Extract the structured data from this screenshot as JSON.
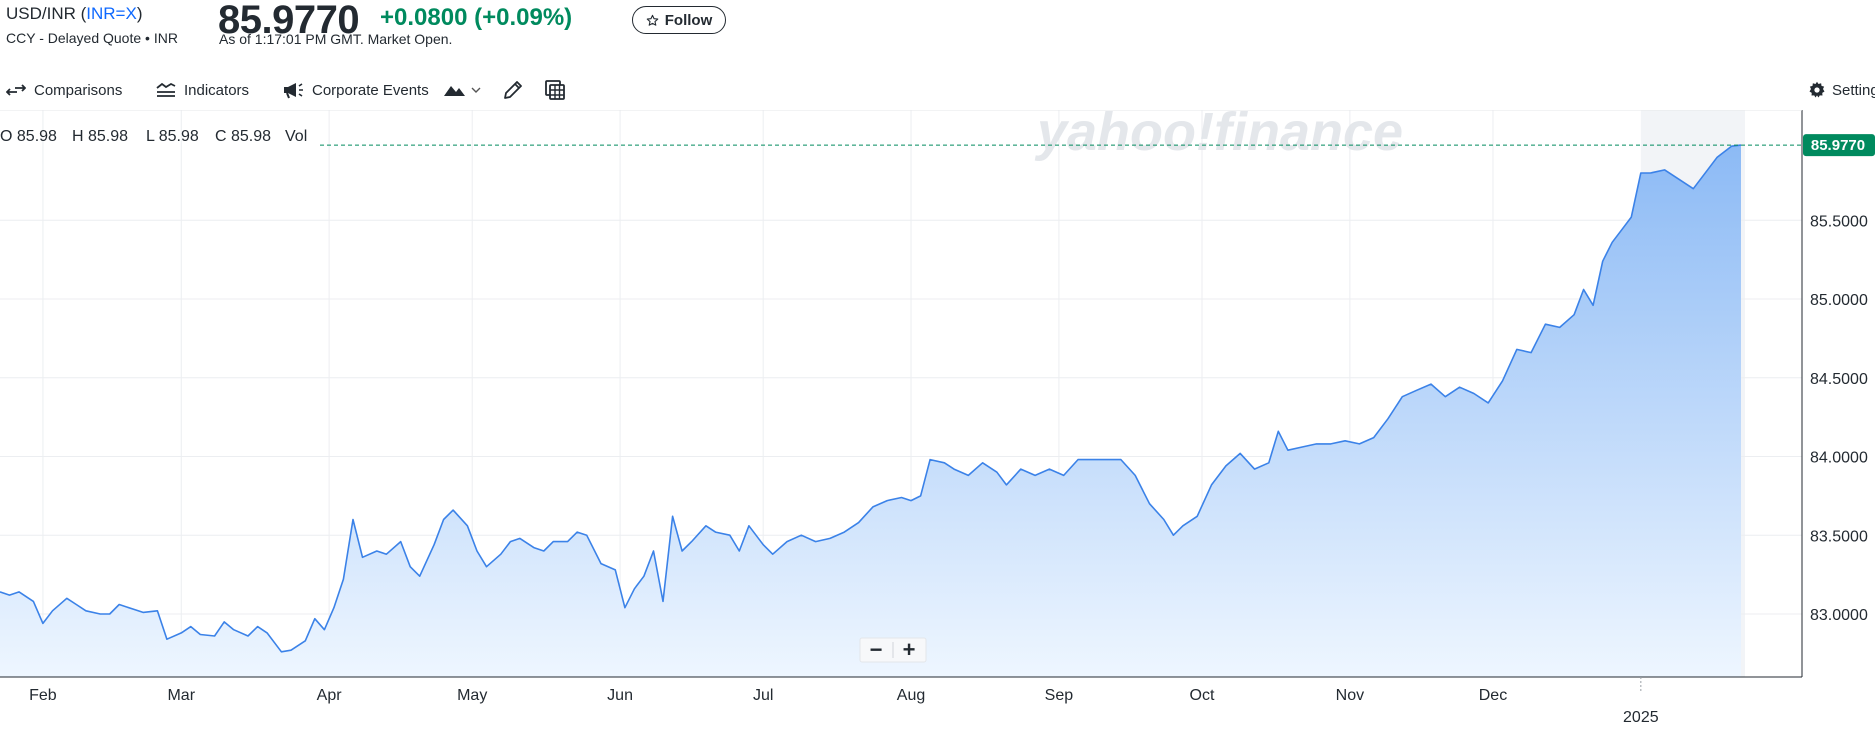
{
  "header": {
    "symbol_prefix": "USD/INR (",
    "ticker": "INR=X",
    "symbol_suffix": ")",
    "subtitle": "CCY - Delayed Quote • INR",
    "price": "85.9770",
    "change": "+0.0800",
    "change_pct": "(+0.09%)",
    "as_of": "As of 1:17:01 PM GMT. Market Open.",
    "follow_label": "Follow"
  },
  "toolbar": {
    "comparisons": "Comparisons",
    "indicators": "Indicators",
    "corporate_events": "Corporate Events",
    "settings": "Settings"
  },
  "colors": {
    "line": "#3b82e8",
    "up": "#008a5e",
    "fill_top": "#8cbaf5",
    "fill_bottom": "#eef6ff"
  },
  "chart_data": {
    "type": "area",
    "ohlc": {
      "open": "O 85.98",
      "high": "H 85.98",
      "low": "L 85.98",
      "close": "C 85.98",
      "vol": "Vol"
    },
    "watermark": "yahoo!finance",
    "last_price_label": "85.9770",
    "last_price": 85.977,
    "ylim": [
      82.6,
      86.2
    ],
    "yticks": [
      {
        "value": 83.0,
        "label": "83.0000"
      },
      {
        "value": 83.5,
        "label": "83.5000"
      },
      {
        "value": 84.0,
        "label": "84.0000"
      },
      {
        "value": 84.5,
        "label": "84.5000"
      },
      {
        "value": 85.0,
        "label": "85.0000"
      },
      {
        "value": 85.5,
        "label": "85.5000"
      }
    ],
    "xlim": [
      "2024-01-23",
      "2025-01-22"
    ],
    "xticks": [
      {
        "date": "2024-02-01",
        "label": "Feb"
      },
      {
        "date": "2024-03-01",
        "label": "Mar"
      },
      {
        "date": "2024-04-01",
        "label": "Apr"
      },
      {
        "date": "2024-05-01",
        "label": "May"
      },
      {
        "date": "2024-06-01",
        "label": "Jun"
      },
      {
        "date": "2024-07-01",
        "label": "Jul"
      },
      {
        "date": "2024-08-01",
        "label": "Aug"
      },
      {
        "date": "2024-09-01",
        "label": "Sep"
      },
      {
        "date": "2024-10-01",
        "label": "Oct"
      },
      {
        "date": "2024-11-01",
        "label": "Nov"
      },
      {
        "date": "2024-12-01",
        "label": "Dec"
      }
    ],
    "year_tick": {
      "date": "2025-01-01",
      "label": "2025"
    },
    "highlight_start": "2025-01-01",
    "points": [
      [
        "2024-01-23",
        83.14
      ],
      [
        "2024-01-25",
        83.12
      ],
      [
        "2024-01-27",
        83.14
      ],
      [
        "2024-01-30",
        83.08
      ],
      [
        "2024-02-01",
        82.94
      ],
      [
        "2024-02-03",
        83.02
      ],
      [
        "2024-02-06",
        83.1
      ],
      [
        "2024-02-08",
        83.06
      ],
      [
        "2024-02-10",
        83.02
      ],
      [
        "2024-02-13",
        83.0
      ],
      [
        "2024-02-15",
        83.0
      ],
      [
        "2024-02-17",
        83.06
      ],
      [
        "2024-02-20",
        83.03
      ],
      [
        "2024-02-22",
        83.01
      ],
      [
        "2024-02-25",
        83.02
      ],
      [
        "2024-02-27",
        82.84
      ],
      [
        "2024-03-01",
        82.88
      ],
      [
        "2024-03-03",
        82.92
      ],
      [
        "2024-03-05",
        82.87
      ],
      [
        "2024-03-08",
        82.86
      ],
      [
        "2024-03-10",
        82.95
      ],
      [
        "2024-03-12",
        82.9
      ],
      [
        "2024-03-15",
        82.86
      ],
      [
        "2024-03-17",
        82.92
      ],
      [
        "2024-03-19",
        82.88
      ],
      [
        "2024-03-22",
        82.76
      ],
      [
        "2024-03-24",
        82.77
      ],
      [
        "2024-03-27",
        82.83
      ],
      [
        "2024-03-29",
        82.97
      ],
      [
        "2024-03-31",
        82.9
      ],
      [
        "2024-04-02",
        83.04
      ],
      [
        "2024-04-04",
        83.22
      ],
      [
        "2024-04-06",
        83.6
      ],
      [
        "2024-04-08",
        83.36
      ],
      [
        "2024-04-11",
        83.4
      ],
      [
        "2024-04-13",
        83.38
      ],
      [
        "2024-04-16",
        83.46
      ],
      [
        "2024-04-18",
        83.3
      ],
      [
        "2024-04-20",
        83.24
      ],
      [
        "2024-04-23",
        83.44
      ],
      [
        "2024-04-25",
        83.6
      ],
      [
        "2024-04-27",
        83.66
      ],
      [
        "2024-04-30",
        83.56
      ],
      [
        "2024-05-02",
        83.4
      ],
      [
        "2024-05-04",
        83.3
      ],
      [
        "2024-05-07",
        83.38
      ],
      [
        "2024-05-09",
        83.46
      ],
      [
        "2024-05-11",
        83.48
      ],
      [
        "2024-05-14",
        83.42
      ],
      [
        "2024-05-16",
        83.4
      ],
      [
        "2024-05-18",
        83.46
      ],
      [
        "2024-05-21",
        83.46
      ],
      [
        "2024-05-23",
        83.52
      ],
      [
        "2024-05-25",
        83.5
      ],
      [
        "2024-05-28",
        83.32
      ],
      [
        "2024-05-31",
        83.28
      ],
      [
        "2024-06-02",
        83.04
      ],
      [
        "2024-06-04",
        83.16
      ],
      [
        "2024-06-06",
        83.24
      ],
      [
        "2024-06-08",
        83.4
      ],
      [
        "2024-06-10",
        83.08
      ],
      [
        "2024-06-12",
        83.62
      ],
      [
        "2024-06-14",
        83.4
      ],
      [
        "2024-06-16",
        83.46
      ],
      [
        "2024-06-19",
        83.56
      ],
      [
        "2024-06-21",
        83.52
      ],
      [
        "2024-06-24",
        83.5
      ],
      [
        "2024-06-26",
        83.4
      ],
      [
        "2024-06-28",
        83.56
      ],
      [
        "2024-07-01",
        83.44
      ],
      [
        "2024-07-03",
        83.38
      ],
      [
        "2024-07-06",
        83.46
      ],
      [
        "2024-07-09",
        83.5
      ],
      [
        "2024-07-12",
        83.46
      ],
      [
        "2024-07-15",
        83.48
      ],
      [
        "2024-07-18",
        83.52
      ],
      [
        "2024-07-21",
        83.58
      ],
      [
        "2024-07-24",
        83.68
      ],
      [
        "2024-07-27",
        83.72
      ],
      [
        "2024-07-30",
        83.74
      ],
      [
        "2024-08-01",
        83.72
      ],
      [
        "2024-08-03",
        83.75
      ],
      [
        "2024-08-05",
        83.98
      ],
      [
        "2024-08-08",
        83.96
      ],
      [
        "2024-08-10",
        83.92
      ],
      [
        "2024-08-13",
        83.88
      ],
      [
        "2024-08-16",
        83.96
      ],
      [
        "2024-08-19",
        83.9
      ],
      [
        "2024-08-21",
        83.82
      ],
      [
        "2024-08-24",
        83.92
      ],
      [
        "2024-08-27",
        83.88
      ],
      [
        "2024-08-30",
        83.92
      ],
      [
        "2024-09-02",
        83.88
      ],
      [
        "2024-09-05",
        83.98
      ],
      [
        "2024-09-08",
        83.98
      ],
      [
        "2024-09-11",
        83.98
      ],
      [
        "2024-09-14",
        83.98
      ],
      [
        "2024-09-17",
        83.88
      ],
      [
        "2024-09-20",
        83.7
      ],
      [
        "2024-09-23",
        83.6
      ],
      [
        "2024-09-25",
        83.5
      ],
      [
        "2024-09-27",
        83.56
      ],
      [
        "2024-09-30",
        83.62
      ],
      [
        "2024-10-03",
        83.82
      ],
      [
        "2024-10-06",
        83.94
      ],
      [
        "2024-10-09",
        84.02
      ],
      [
        "2024-10-12",
        83.92
      ],
      [
        "2024-10-15",
        83.96
      ],
      [
        "2024-10-17",
        84.16
      ],
      [
        "2024-10-19",
        84.04
      ],
      [
        "2024-10-22",
        84.06
      ],
      [
        "2024-10-25",
        84.08
      ],
      [
        "2024-10-28",
        84.08
      ],
      [
        "2024-10-31",
        84.1
      ],
      [
        "2024-11-03",
        84.08
      ],
      [
        "2024-11-06",
        84.12
      ],
      [
        "2024-11-09",
        84.24
      ],
      [
        "2024-11-12",
        84.38
      ],
      [
        "2024-11-15",
        84.42
      ],
      [
        "2024-11-18",
        84.46
      ],
      [
        "2024-11-21",
        84.38
      ],
      [
        "2024-11-24",
        84.44
      ],
      [
        "2024-11-27",
        84.4
      ],
      [
        "2024-11-30",
        84.34
      ],
      [
        "2024-12-03",
        84.48
      ],
      [
        "2024-12-06",
        84.68
      ],
      [
        "2024-12-09",
        84.66
      ],
      [
        "2024-12-12",
        84.84
      ],
      [
        "2024-12-15",
        84.82
      ],
      [
        "2024-12-18",
        84.9
      ],
      [
        "2024-12-20",
        85.06
      ],
      [
        "2024-12-22",
        84.96
      ],
      [
        "2024-12-24",
        85.24
      ],
      [
        "2024-12-26",
        85.36
      ],
      [
        "2024-12-28",
        85.44
      ],
      [
        "2024-12-30",
        85.52
      ],
      [
        "2025-01-01",
        85.8
      ],
      [
        "2025-01-03",
        85.8
      ],
      [
        "2025-01-06",
        85.82
      ],
      [
        "2025-01-09",
        85.76
      ],
      [
        "2025-01-12",
        85.7
      ],
      [
        "2025-01-14",
        85.78
      ],
      [
        "2025-01-17",
        85.9
      ],
      [
        "2025-01-20",
        85.97
      ],
      [
        "2025-01-22",
        85.977
      ]
    ]
  }
}
